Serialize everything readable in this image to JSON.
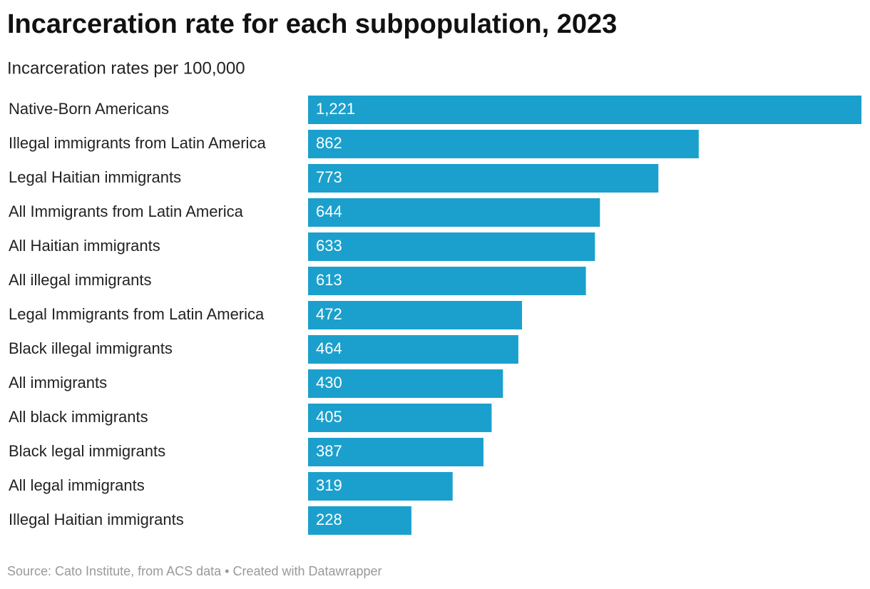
{
  "chart_data": {
    "type": "bar",
    "orientation": "horizontal",
    "title": "Incarceration rate for each subpopulation, 2023",
    "subtitle": "Incarceration rates per 100,000",
    "categories": [
      "Native-Born Americans",
      "Illegal immigrants from Latin America",
      "Legal Haitian immigrants",
      "All Immigrants from Latin America",
      "All Haitian immigrants",
      "All illegal immigrants",
      "Legal Immigrants from Latin America",
      "Black illegal immigrants",
      "All immigrants",
      "All black immigrants",
      "Black legal immigrants",
      "All legal immigrants",
      "Illegal Haitian immigrants"
    ],
    "values": [
      1221,
      862,
      773,
      644,
      633,
      613,
      472,
      464,
      430,
      405,
      387,
      319,
      228
    ],
    "value_labels": [
      "1,221",
      "862",
      "773",
      "644",
      "633",
      "613",
      "472",
      "464",
      "430",
      "405",
      "387",
      "319",
      "228"
    ],
    "color": "#1ba0cd",
    "footer": "Source: Cato Institute, from ACS data • Created with Datawrapper"
  }
}
